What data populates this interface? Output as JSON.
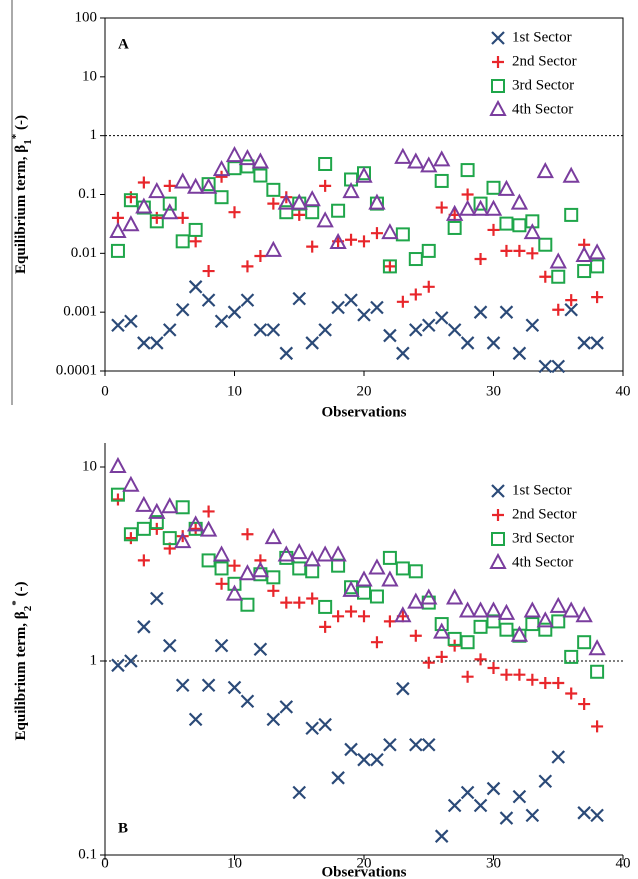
{
  "chart_data": [
    {
      "type": "scatter",
      "yscale": "log",
      "panel_label": "A",
      "ylabel": [
        "Equilibrium term, β",
        "1",
        "*",
        " (-)"
      ],
      "xlabel": "Observations",
      "x": [
        1,
        2,
        3,
        4,
        5,
        6,
        7,
        8,
        9,
        10,
        11,
        12,
        13,
        14,
        15,
        16,
        17,
        18,
        19,
        20,
        21,
        22,
        23,
        24,
        25,
        26,
        27,
        28,
        29,
        30,
        31,
        32,
        33,
        34,
        35,
        36,
        37,
        38
      ],
      "xlim": [
        0,
        40
      ],
      "xticks": [
        0,
        10,
        20,
        30,
        40
      ],
      "ylim": [
        0.0001,
        100
      ],
      "yticks": [
        0.0001,
        0.001,
        0.01,
        0.1,
        1,
        10,
        100
      ],
      "reference_line": 1,
      "legend": "top-right",
      "frame": true,
      "series": [
        {
          "name": "1st Sector",
          "marker": "x",
          "color": "#2b4a78",
          "values": [
            0.0006,
            0.0007,
            0.0003,
            0.0003,
            0.0005,
            0.0011,
            0.0027,
            0.0016,
            0.0007,
            0.001,
            0.0016,
            0.0005,
            0.0005,
            0.0002,
            0.0017,
            0.0003,
            0.0005,
            0.0012,
            0.0016,
            0.0009,
            0.0012,
            0.0004,
            0.0002,
            0.0005,
            0.0006,
            0.0008,
            0.0005,
            0.0003,
            0.001,
            0.0003,
            0.001,
            0.0002,
            0.0006,
            0.00012,
            0.00012,
            0.0011,
            0.0003,
            0.0003
          ]
        },
        {
          "name": "2nd Sector",
          "marker": "plus",
          "color": "#e8262b",
          "values": [
            0.04,
            0.09,
            0.16,
            0.04,
            0.14,
            0.04,
            0.016,
            0.005,
            0.2,
            0.05,
            0.006,
            0.009,
            0.07,
            0.09,
            0.045,
            0.013,
            0.14,
            0.016,
            0.017,
            0.016,
            0.022,
            0.006,
            0.0015,
            0.002,
            0.0027,
            0.06,
            0.045,
            0.1,
            0.008,
            0.025,
            0.011,
            0.011,
            0.01,
            0.004,
            0.0011,
            0.0016,
            0.014,
            0.0018
          ]
        },
        {
          "name": "3rd Sector",
          "marker": "square",
          "color": "#1fa64a",
          "values": [
            0.011,
            0.08,
            0.06,
            0.035,
            0.07,
            0.016,
            0.025,
            0.15,
            0.09,
            0.28,
            0.3,
            0.21,
            0.12,
            0.05,
            0.07,
            0.05,
            0.33,
            0.053,
            0.18,
            0.23,
            0.07,
            0.006,
            0.021,
            0.008,
            0.011,
            0.17,
            0.027,
            0.26,
            0.07,
            0.13,
            0.032,
            0.03,
            0.035,
            0.014,
            0.004,
            0.045,
            0.005,
            0.006
          ]
        },
        {
          "name": "4th Sector",
          "marker": "triangle",
          "color": "#7a3d9e",
          "values": [
            0.023,
            0.03,
            0.06,
            0.11,
            0.048,
            0.16,
            0.13,
            0.13,
            0.26,
            0.45,
            0.4,
            0.35,
            0.011,
            0.07,
            0.07,
            0.08,
            0.035,
            0.015,
            0.11,
            0.2,
            0.07,
            0.022,
            0.42,
            0.35,
            0.3,
            0.38,
            0.045,
            0.055,
            0.055,
            0.055,
            0.12,
            0.07,
            0.022,
            0.24,
            0.007,
            0.2,
            0.009,
            0.01
          ]
        }
      ]
    },
    {
      "type": "scatter",
      "yscale": "log",
      "panel_label": "B",
      "ylabel": [
        "Equilibrium term, β",
        "2",
        "*",
        " (-)"
      ],
      "xlabel": "Observations",
      "x": [
        1,
        2,
        3,
        4,
        5,
        6,
        7,
        8,
        9,
        10,
        11,
        12,
        13,
        14,
        15,
        16,
        17,
        18,
        19,
        20,
        21,
        22,
        23,
        24,
        25,
        26,
        27,
        28,
        29,
        30,
        31,
        32,
        33,
        34,
        35,
        36,
        37,
        38
      ],
      "xlim": [
        0,
        40
      ],
      "xticks": [
        0,
        10,
        20,
        30,
        40
      ],
      "ylim": [
        0.1,
        10
      ],
      "yticks": [
        0.1,
        1,
        10
      ],
      "reference_line": 1,
      "legend": "top-right",
      "frame": false,
      "series": [
        {
          "name": "1st Sector",
          "marker": "x",
          "color": "#2b4a78",
          "values": [
            0.95,
            1.0,
            1.5,
            2.1,
            1.2,
            0.75,
            0.5,
            0.75,
            1.2,
            0.73,
            0.62,
            1.15,
            0.5,
            0.58,
            0.21,
            0.45,
            0.47,
            0.25,
            0.35,
            0.31,
            0.31,
            0.37,
            0.72,
            0.37,
            0.37,
            0.125,
            0.18,
            0.21,
            0.18,
            0.22,
            0.155,
            0.2,
            0.16,
            0.24,
            0.32,
            null,
            0.165,
            0.16
          ]
        },
        {
          "name": "2nd Sector",
          "marker": "plus",
          "color": "#e8262b",
          "values": [
            6.8,
            4.3,
            3.3,
            4.8,
            3.8,
            4.4,
            4.8,
            5.9,
            2.5,
            3.1,
            4.5,
            3.3,
            2.3,
            2.0,
            2.0,
            2.1,
            1.5,
            1.7,
            1.8,
            1.7,
            1.25,
            1.6,
            1.7,
            1.35,
            0.98,
            1.05,
            1.2,
            0.83,
            1.02,
            0.92,
            0.85,
            0.85,
            0.8,
            0.77,
            0.77,
            0.68,
            0.6,
            0.46
          ]
        },
        {
          "name": "3rd Sector",
          "marker": "square",
          "color": "#1fa64a",
          "values": [
            7.2,
            4.5,
            4.8,
            5.2,
            4.3,
            6.2,
            4.8,
            3.3,
            3.0,
            2.5,
            1.95,
            2.8,
            2.7,
            3.4,
            3.0,
            2.9,
            1.9,
            3.1,
            2.4,
            2.25,
            2.15,
            3.4,
            3.0,
            2.9,
            2.0,
            1.55,
            1.3,
            1.25,
            1.5,
            1.6,
            1.45,
            1.35,
            1.55,
            1.45,
            1.6,
            1.05,
            1.25,
            0.88
          ]
        },
        {
          "name": "4th Sector",
          "marker": "triangle",
          "color": "#7a3d9e",
          "values": [
            10,
            8,
            6.3,
            5.8,
            6.2,
            4.1,
            5,
            4.7,
            3.5,
            2.2,
            2.8,
            2.9,
            4.3,
            3.5,
            3.6,
            3.3,
            3.5,
            3.5,
            2.3,
            2.6,
            3.0,
            2.6,
            1.7,
            2.0,
            2.1,
            1.4,
            2.1,
            1.8,
            1.8,
            1.8,
            1.75,
            1.35,
            1.8,
            1.6,
            1.9,
            1.8,
            1.7,
            1.15
          ]
        }
      ]
    }
  ]
}
